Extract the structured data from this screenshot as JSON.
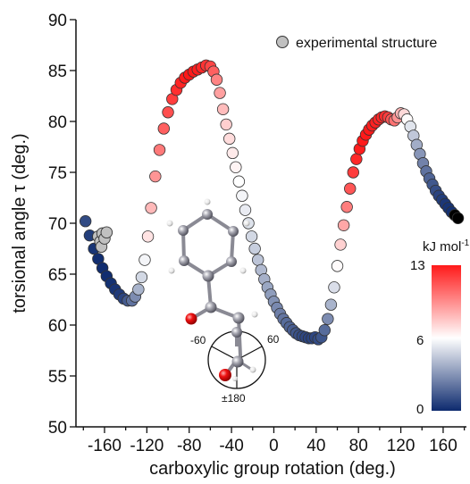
{
  "chart_data": {
    "type": "scatter",
    "xlabel": "carboxylic group rotation (deg.)",
    "ylabel": "torsional angle τ (deg.)",
    "xlim": [
      -187,
      182
    ],
    "ylim": [
      50,
      90
    ],
    "xticks": [
      -160,
      -120,
      -80,
      -40,
      0,
      40,
      80,
      120,
      160
    ],
    "xtick_labels": [
      "-160",
      "-120",
      "-80",
      "-40",
      "0",
      "40",
      "80",
      "120",
      "160"
    ],
    "yticks": [
      50,
      55,
      60,
      65,
      70,
      75,
      80,
      85,
      90
    ],
    "ytick_labels": [
      "50",
      "55",
      "60",
      "65",
      "70",
      "75",
      "80",
      "85",
      "90"
    ],
    "grid": false,
    "legend": {
      "position": "top-right",
      "entries": [
        {
          "label": "experimental structure",
          "color": "#c0c0c0"
        }
      ]
    },
    "colorbar": {
      "title": "kJ mol",
      "title_sup": "-1",
      "min": 0,
      "max": 13,
      "tick_labels": [
        "13",
        "6",
        "0"
      ],
      "colors": [
        "#ff1a1a",
        "#ffffff",
        "#0d2a6e"
      ]
    },
    "series": [
      {
        "name": "computed",
        "note_color": "energy",
        "x": [
          -178,
          -174,
          -170,
          -166,
          -162,
          -158,
          -154,
          -150,
          -146,
          -142,
          -138,
          -134,
          -131,
          -128,
          -125,
          -122,
          -119,
          -116,
          -112,
          -108,
          -104,
          -100,
          -96,
          -92,
          -88,
          -84,
          -80,
          -76,
          -72,
          -68,
          -64,
          -60,
          -57,
          -54,
          -51,
          -48,
          -45,
          -42,
          -39,
          -36,
          -33,
          -30,
          -27,
          -24,
          -21,
          -18,
          -15,
          -12,
          -9,
          -6,
          -3,
          0,
          3,
          6,
          9,
          12,
          15,
          18,
          21,
          24,
          27,
          30,
          33,
          36,
          39,
          42,
          45,
          48,
          51,
          54,
          57,
          60,
          63,
          66,
          69,
          72,
          75,
          78,
          81,
          84,
          87,
          90,
          93,
          96,
          99,
          102,
          105,
          108,
          111,
          114,
          117,
          120,
          123,
          126,
          129,
          132,
          135,
          138,
          141,
          144,
          147,
          150,
          153,
          156,
          159,
          162,
          165,
          168,
          171,
          174
        ],
        "y": [
          70.2,
          68.8,
          67.5,
          66.5,
          65.6,
          64.8,
          64.1,
          63.5,
          63.0,
          62.6,
          62.4,
          62.4,
          62.8,
          63.5,
          64.7,
          66.4,
          68.7,
          71.5,
          74.6,
          77.2,
          79.3,
          80.9,
          82.2,
          83.1,
          83.8,
          84.3,
          84.6,
          84.9,
          85.1,
          85.3,
          85.5,
          85.4,
          84.9,
          84.1,
          82.8,
          81.2,
          79.7,
          78.3,
          76.9,
          75.5,
          74.1,
          72.7,
          71.3,
          70.0,
          68.7,
          67.5,
          66.4,
          65.4,
          64.5,
          63.7,
          63.0,
          62.3,
          61.7,
          61.1,
          60.6,
          60.2,
          59.8,
          59.5,
          59.2,
          59.0,
          58.9,
          58.8,
          58.7,
          58.7,
          58.8,
          58.6,
          58.8,
          59.5,
          60.6,
          62.0,
          63.7,
          65.8,
          67.9,
          69.8,
          71.6,
          73.4,
          75.0,
          76.3,
          77.3,
          78.1,
          78.7,
          79.2,
          79.6,
          79.9,
          80.2,
          80.4,
          80.5,
          80.4,
          80.2,
          80.1,
          80.4,
          80.8,
          80.7,
          80.2,
          79.5,
          78.6,
          77.7,
          76.8,
          75.9,
          75.1,
          74.4,
          73.8,
          73.2,
          72.7,
          72.3,
          71.9,
          71.5,
          71.1,
          70.8,
          70.5
        ],
        "energy": [
          1.0,
          0.6,
          0.3,
          0.1,
          0.1,
          0.1,
          0.2,
          0.3,
          0.5,
          0.8,
          1.5,
          2.2,
          3.0,
          4.2,
          5.3,
          6.2,
          7.3,
          8.5,
          9.5,
          10.3,
          11.0,
          11.5,
          12.0,
          12.4,
          12.7,
          12.9,
          13.0,
          13.0,
          12.9,
          12.6,
          12.3,
          11.8,
          11.0,
          10.0,
          9.2,
          8.4,
          7.9,
          7.5,
          7.1,
          6.8,
          6.5,
          6.2,
          5.9,
          5.6,
          5.3,
          5.0,
          4.7,
          4.4,
          4.1,
          3.8,
          3.5,
          3.2,
          2.9,
          2.6,
          2.3,
          2.0,
          1.8,
          1.6,
          1.4,
          1.2,
          1.0,
          0.9,
          0.8,
          0.8,
          0.9,
          1.0,
          1.3,
          2.0,
          3.0,
          4.2,
          5.5,
          6.6,
          7.8,
          9.0,
          10.2,
          11.3,
          12.0,
          12.6,
          12.9,
          13.0,
          13.0,
          13.0,
          12.9,
          12.8,
          12.7,
          12.6,
          12.4,
          12.0,
          11.3,
          10.5,
          9.6,
          8.6,
          7.6,
          6.6,
          5.7,
          4.8,
          4.0,
          3.3,
          2.7,
          2.2,
          1.8,
          1.4,
          1.1,
          0.8,
          0.6,
          0.4,
          0.3,
          0.2
        ]
      },
      {
        "name": "experimental structure",
        "x": [
          -166,
          -164,
          -163,
          -162,
          -160,
          -158
        ],
        "y": [
          68.7,
          68.2,
          67.7,
          69.0,
          68.5,
          69.1
        ]
      }
    ]
  },
  "molecule": {
    "labels": [
      "-60",
      "60",
      "±180"
    ]
  }
}
